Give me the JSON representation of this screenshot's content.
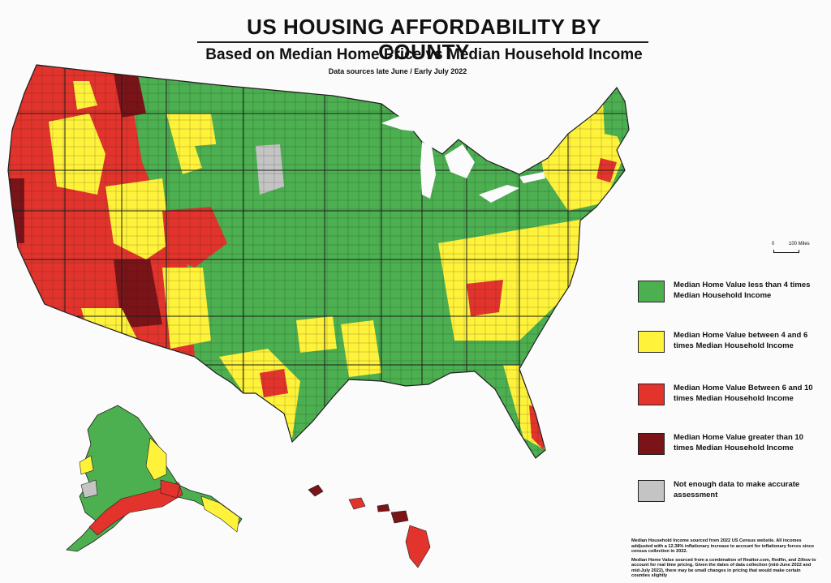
{
  "title": "US HOUSING AFFORDABILITY BY COUNTY",
  "subtitle": "Based on Median Home Price vs Median Household Income",
  "sources_note": "Data sources late June / Early July 2022",
  "scale": {
    "zero": "0",
    "label": "100 Miles"
  },
  "colors": {
    "green": "#4caf50",
    "yellow": "#fff23a",
    "red": "#e2342c",
    "darkred": "#7a1418",
    "gray": "#c4c4c4",
    "border": "#1e1e1e"
  },
  "legend": [
    {
      "key": "green",
      "label": "Median Home Value less than 4 times Median Household Income"
    },
    {
      "key": "yellow",
      "label": "Median Home Value between 4 and 6 times Median Household Income"
    },
    {
      "key": "red",
      "label": "Median Home Value Between 6 and 10 times Median Household Income"
    },
    {
      "key": "darkred",
      "label": "Median Home Value greater than 10 times Median Household Income"
    },
    {
      "key": "gray",
      "label": "Not enough data to make accurate assessment"
    }
  ],
  "footnotes": [
    "Median Household Income sourced from 2022 US Census website.  All incomes addjusted with a 12.38% inflationary increase to account for inflationary forces since census collection in 2022.",
    "Median Home Value sourced from a combination of Realtor.com, Redfin, and Zillow to account for real time pricing.  Given the dates of data collection (mid-June 2022 and mid-July 2022), there may be small changes in pricing that would make certain counties slightly"
  ]
}
